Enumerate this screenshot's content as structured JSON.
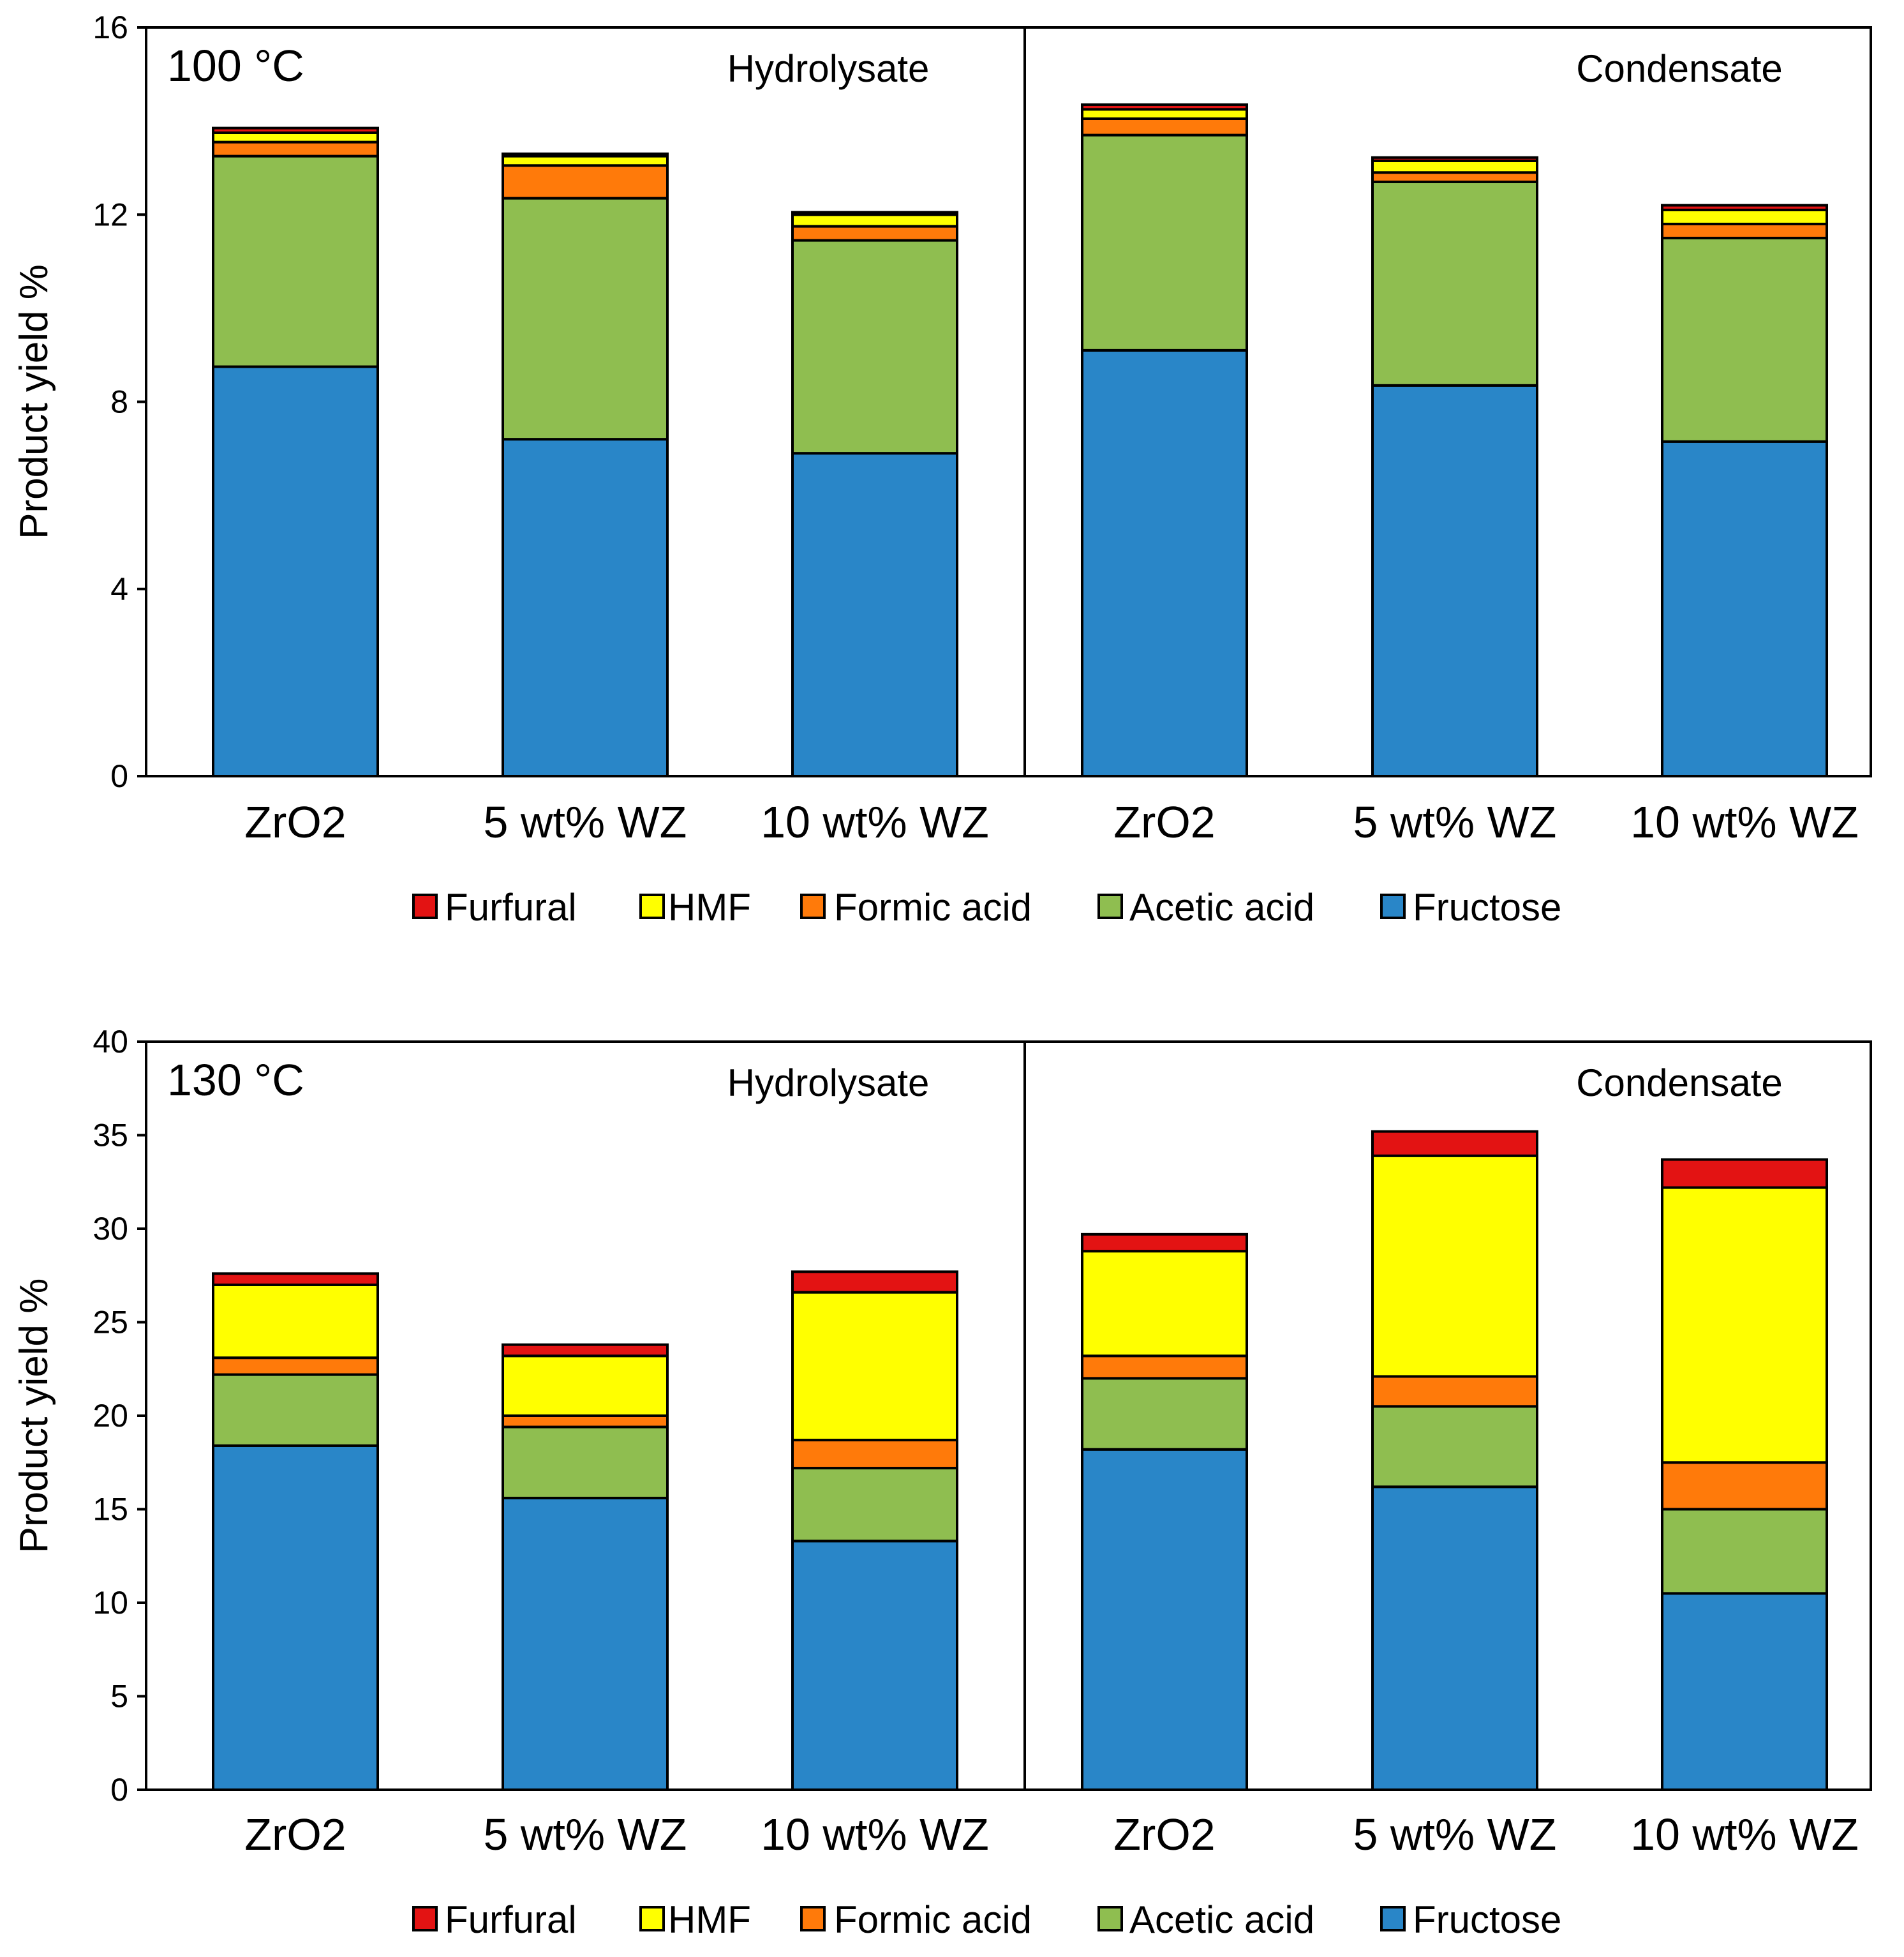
{
  "colors": {
    "Furfural": "#e31313",
    "HMF": "#ffff00",
    "Formic acid": "#ff7a0a",
    "Acetic acid": "#8fbe50",
    "Fructose": "#2986c8"
  },
  "chart_data": [
    {
      "type": "bar",
      "stacked": true,
      "panel_label": "100 °C",
      "ylabel": "Product yield %",
      "ylim": [
        0,
        16
      ],
      "yticks": [
        0,
        4,
        8,
        12,
        16
      ],
      "groups": [
        "Hydrolysate",
        "Condensate"
      ],
      "categories": [
        "ZrO2",
        "5 wt% WZ",
        "10 wt% WZ",
        "ZrO2",
        "5 wt% WZ",
        "10 wt% WZ"
      ],
      "legend": [
        "Furfural",
        "HMF",
        "Formic acid",
        "Acetic acid",
        "Fructose"
      ],
      "series": [
        {
          "name": "Fructose",
          "values": [
            8.75,
            7.2,
            6.9,
            9.1,
            8.35,
            7.15
          ]
        },
        {
          "name": "Acetic acid",
          "values": [
            4.5,
            5.15,
            4.55,
            4.6,
            4.35,
            4.35
          ]
        },
        {
          "name": "Formic acid",
          "values": [
            0.3,
            0.7,
            0.3,
            0.35,
            0.2,
            0.3
          ]
        },
        {
          "name": "HMF",
          "values": [
            0.2,
            0.2,
            0.25,
            0.2,
            0.25,
            0.3
          ]
        },
        {
          "name": "Furfural",
          "values": [
            0.1,
            0.05,
            0.05,
            0.1,
            0.07,
            0.1
          ]
        }
      ]
    },
    {
      "type": "bar",
      "stacked": true,
      "panel_label": "130 °C",
      "ylabel": "Product yield %",
      "ylim": [
        0,
        40
      ],
      "yticks": [
        0,
        5,
        10,
        15,
        20,
        25,
        30,
        35,
        40
      ],
      "groups": [
        "Hydrolysate",
        "Condensate"
      ],
      "categories": [
        "ZrO2",
        "5 wt% WZ",
        "10 wt% WZ",
        "ZrO2",
        "5 wt% WZ",
        "10 wt% WZ"
      ],
      "legend": [
        "Furfural",
        "HMF",
        "Formic acid",
        "Acetic acid",
        "Fructose"
      ],
      "series": [
        {
          "name": "Fructose",
          "values": [
            18.4,
            15.6,
            13.3,
            18.2,
            16.2,
            10.5
          ]
        },
        {
          "name": "Acetic acid",
          "values": [
            3.8,
            3.8,
            3.9,
            3.8,
            4.3,
            4.5
          ]
        },
        {
          "name": "Formic acid",
          "values": [
            0.9,
            0.6,
            1.5,
            1.2,
            1.6,
            2.5
          ]
        },
        {
          "name": "HMF",
          "values": [
            3.9,
            3.2,
            7.9,
            5.6,
            11.8,
            14.7
          ]
        },
        {
          "name": "Furfural",
          "values": [
            0.6,
            0.6,
            1.1,
            0.9,
            1.3,
            1.5
          ]
        }
      ]
    }
  ]
}
